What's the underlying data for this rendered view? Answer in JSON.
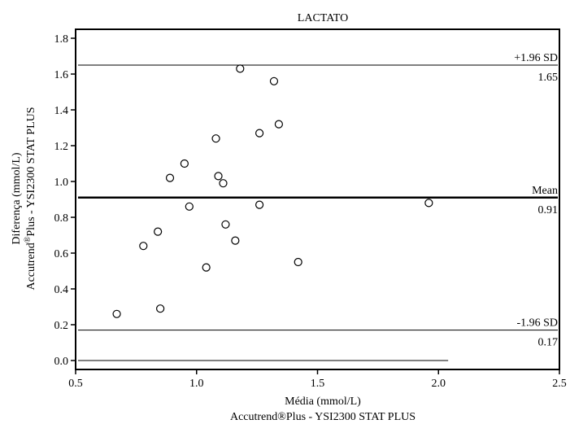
{
  "chart_data": {
    "type": "scatter",
    "title": "LACTATO",
    "xlabel": "Média (mmol/L)",
    "xlabel2": "Accutrend®Plus - YSI2300 STAT PLUS",
    "ylabel": "Diferença (mmol/L)",
    "ylabel2_pre": "Accutrend",
    "ylabel2_sup": "®",
    "ylabel2_post": "Plus - YSI2300 STAT PLUS",
    "xlim": [
      0.5,
      2.5
    ],
    "ylim": [
      -0.05,
      1.85
    ],
    "x_ticks": [
      0.5,
      1.0,
      1.5,
      2.0,
      2.5
    ],
    "x_tick_labels": [
      "0.5",
      "1.0",
      "1.5",
      "2.0",
      "2.5"
    ],
    "y_ticks": [
      0.0,
      0.2,
      0.4,
      0.6,
      0.8,
      1.0,
      1.2,
      1.4,
      1.6,
      1.8
    ],
    "y_tick_labels": [
      "0.0",
      "0.2",
      "0.4",
      "0.6",
      "0.8",
      "1.0",
      "1.2",
      "1.4",
      "1.6",
      "1.8"
    ],
    "grid": false,
    "reference_lines": [
      {
        "name": "upper-loa",
        "label": "+1.96 SD",
        "value_label": "1.65",
        "y": 1.65,
        "bold": false
      },
      {
        "name": "mean",
        "label": "Mean",
        "value_label": "0.91",
        "y": 0.91,
        "bold": true
      },
      {
        "name": "lower-loa",
        "label": "-1.96 SD",
        "value_label": "0.17",
        "y": 0.17,
        "bold": false
      }
    ],
    "zero_line": {
      "y": 0.0,
      "x_end": 2.04
    },
    "points": [
      {
        "x": 0.67,
        "y": 0.26
      },
      {
        "x": 0.78,
        "y": 0.64
      },
      {
        "x": 0.84,
        "y": 0.72
      },
      {
        "x": 0.85,
        "y": 0.29
      },
      {
        "x": 0.89,
        "y": 1.02
      },
      {
        "x": 0.95,
        "y": 1.1
      },
      {
        "x": 0.97,
        "y": 0.86
      },
      {
        "x": 1.04,
        "y": 0.52
      },
      {
        "x": 1.08,
        "y": 1.24
      },
      {
        "x": 1.09,
        "y": 1.03
      },
      {
        "x": 1.11,
        "y": 0.99
      },
      {
        "x": 1.12,
        "y": 0.76
      },
      {
        "x": 1.16,
        "y": 0.67
      },
      {
        "x": 1.18,
        "y": 1.63
      },
      {
        "x": 1.26,
        "y": 1.27
      },
      {
        "x": 1.26,
        "y": 0.87
      },
      {
        "x": 1.32,
        "y": 1.56
      },
      {
        "x": 1.34,
        "y": 1.32
      },
      {
        "x": 1.42,
        "y": 0.55
      },
      {
        "x": 1.96,
        "y": 0.88
      }
    ],
    "colors": {
      "line": "#000000",
      "marker": "#000000",
      "background": "#ffffff"
    }
  }
}
